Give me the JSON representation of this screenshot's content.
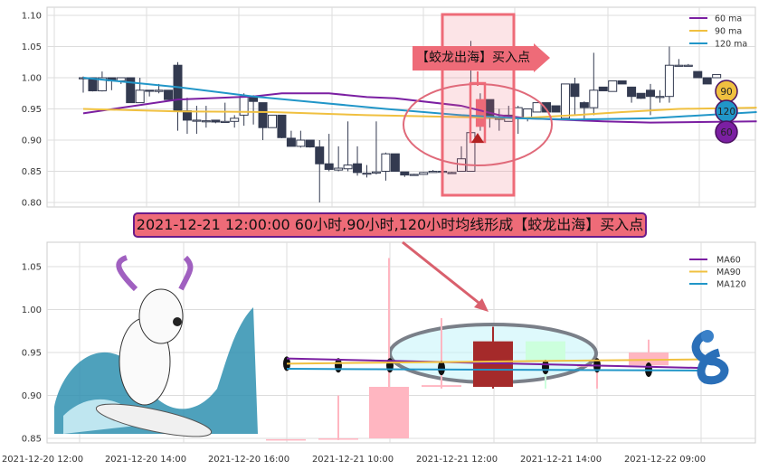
{
  "chart_data": [
    {
      "type": "candlestick",
      "ylim": [
        0.8,
        1.1
      ],
      "yticks": [
        "1.10",
        "1.05",
        "1.00",
        "0.95",
        "0.90",
        "0.85",
        "0.80"
      ],
      "grid": true,
      "legend_placement": "top-right",
      "legend": [
        "60 ma",
        "90 ma",
        "120 ma"
      ],
      "colors": {
        "ma60": "#7b1fa2",
        "ma90": "#f0c040",
        "ma120": "#2196c8",
        "down": "#333a50",
        "up": "#ffffff",
        "highlight": "#ee6b78"
      },
      "candles_ohlc": [
        [
          1.0,
          1.002,
          0.976,
          1.0
        ],
        [
          1.0,
          1.0,
          0.978,
          0.979
        ],
        [
          0.979,
          1.01,
          0.978,
          1.0
        ],
        [
          1.0,
          1.0,
          0.98,
          0.995
        ],
        [
          0.995,
          1.0,
          0.99,
          1.0
        ],
        [
          1.0,
          1.0,
          0.96,
          0.96
        ],
        [
          0.96,
          1.0,
          0.96,
          0.98
        ],
        [
          0.98,
          0.98,
          0.97,
          0.979
        ],
        [
          0.978,
          0.99,
          0.975,
          0.98
        ],
        [
          0.98,
          0.98,
          0.965,
          0.965
        ],
        [
          1.02,
          1.025,
          0.915,
          0.947
        ],
        [
          0.947,
          0.968,
          0.91,
          0.932
        ],
        [
          0.932,
          0.955,
          0.91,
          0.932
        ],
        [
          0.931,
          0.955,
          0.92,
          0.931
        ],
        [
          0.932,
          0.932,
          0.927,
          0.929
        ],
        [
          0.93,
          0.96,
          0.93,
          0.93
        ],
        [
          0.93,
          0.94,
          0.92,
          0.935
        ],
        [
          0.94,
          0.975,
          0.923,
          0.97
        ],
        [
          0.97,
          0.972,
          0.925,
          0.962
        ],
        [
          0.96,
          0.96,
          0.9,
          0.92
        ],
        [
          0.92,
          0.94,
          0.92,
          0.94
        ],
        [
          0.94,
          0.94,
          0.903,
          0.904
        ],
        [
          0.903,
          0.915,
          0.89,
          0.89
        ],
        [
          0.89,
          0.915,
          0.888,
          0.9
        ],
        [
          0.9,
          0.9,
          0.888,
          0.889
        ],
        [
          0.889,
          0.9,
          0.8,
          0.862
        ],
        [
          0.862,
          0.91,
          0.85,
          0.853
        ],
        [
          0.852,
          0.89,
          0.85,
          0.855
        ],
        [
          0.854,
          0.93,
          0.85,
          0.86
        ],
        [
          0.862,
          0.89,
          0.843,
          0.848
        ],
        [
          0.847,
          0.86,
          0.84,
          0.847
        ],
        [
          0.847,
          0.93,
          0.845,
          0.849
        ],
        [
          0.85,
          0.88,
          0.835,
          0.878
        ],
        [
          0.878,
          0.878,
          0.85,
          0.85
        ],
        [
          0.849,
          0.849,
          0.841,
          0.844
        ],
        [
          0.845,
          0.846,
          0.843,
          0.845
        ],
        [
          0.845,
          0.849,
          0.845,
          0.848
        ],
        [
          0.848,
          0.852,
          0.848,
          0.85
        ],
        [
          0.85,
          0.852,
          0.848,
          0.85
        ],
        [
          0.848,
          0.849,
          0.848,
          0.848
        ],
        [
          0.85,
          0.89,
          0.85,
          0.87
        ],
        [
          0.85,
          1.059,
          0.85,
          0.912
        ],
        [
          0.922,
          0.975,
          0.915,
          0.965
        ],
        [
          0.965,
          0.965,
          0.92,
          0.935
        ],
        [
          0.935,
          0.95,
          0.915,
          0.935
        ],
        [
          0.93,
          0.955,
          0.93,
          0.94
        ],
        [
          0.935,
          0.955,
          0.91,
          0.952
        ],
        [
          0.935,
          0.95,
          0.93,
          0.95
        ],
        [
          0.945,
          0.96,
          0.945,
          0.96
        ],
        [
          0.96,
          0.96,
          0.945,
          0.945
        ],
        [
          0.955,
          0.955,
          0.945,
          0.945
        ],
        [
          0.935,
          0.99,
          0.935,
          0.99
        ],
        [
          0.99,
          1.0,
          0.94,
          0.97
        ],
        [
          0.96,
          0.962,
          0.93,
          0.952
        ],
        [
          0.952,
          1.04,
          0.94,
          0.98
        ],
        [
          0.985,
          0.985,
          0.979,
          0.979
        ],
        [
          0.978,
          0.995,
          0.978,
          0.995
        ],
        [
          0.995,
          0.995,
          0.99,
          0.99
        ],
        [
          0.985,
          0.985,
          0.96,
          0.97
        ],
        [
          0.975,
          0.975,
          0.966,
          0.967
        ],
        [
          0.98,
          0.99,
          0.94,
          0.97
        ],
        [
          0.97,
          0.98,
          0.96,
          0.97
        ],
        [
          0.97,
          1.05,
          0.96,
          1.02
        ],
        [
          1.02,
          1.03,
          1.02,
          1.02
        ],
        [
          1.02,
          1.022,
          1.02,
          1.02
        ],
        [
          1.01,
          1.01,
          1.0,
          1.0
        ],
        [
          1.0,
          1.0,
          0.99,
          0.99
        ],
        [
          1.0,
          1.005,
          1.0,
          1.005
        ]
      ],
      "ma60": [
        [
          0,
          0.943
        ],
        [
          10,
          0.965
        ],
        [
          18,
          0.97
        ],
        [
          21,
          0.975
        ],
        [
          26,
          0.975
        ],
        [
          30,
          0.969
        ],
        [
          33,
          0.967
        ],
        [
          40,
          0.955
        ],
        [
          44,
          0.94
        ],
        [
          47,
          0.935
        ],
        [
          55,
          0.93
        ],
        [
          60,
          0.928
        ],
        [
          70,
          0.93
        ]
      ],
      "ma90": [
        [
          0,
          0.95
        ],
        [
          10,
          0.946
        ],
        [
          20,
          0.945
        ],
        [
          30,
          0.94
        ],
        [
          40,
          0.937
        ],
        [
          46,
          0.935
        ],
        [
          52,
          0.94
        ],
        [
          57,
          0.945
        ],
        [
          63,
          0.95
        ],
        [
          70,
          0.952
        ]
      ],
      "ma120": [
        [
          0,
          1.0
        ],
        [
          10,
          0.985
        ],
        [
          18,
          0.97
        ],
        [
          25,
          0.96
        ],
        [
          32,
          0.95
        ],
        [
          40,
          0.94
        ],
        [
          46,
          0.935
        ],
        [
          52,
          0.933
        ],
        [
          60,
          0.935
        ],
        [
          70,
          0.945
        ]
      ],
      "badges": [
        "90",
        "120",
        "60"
      ],
      "annotation": "【蛟龙出海】买入点"
    },
    {
      "type": "candlestick",
      "ylim": [
        0.845,
        1.07
      ],
      "yticks": [
        "1.05",
        "1.00",
        "0.95",
        "0.90",
        "0.85"
      ],
      "xticks": [
        "2021-12-20 12:00",
        "2021-12-20 14:00",
        "2021-12-20 16:00",
        "2021-12-21 10:00",
        "2021-12-21 12:00",
        "2021-12-21 14:00",
        "2021-12-22 09:00"
      ],
      "grid": true,
      "legend_placement": "top-right",
      "legend": [
        "MA60",
        "MA90",
        "MA120"
      ],
      "colors": {
        "ma60": "#7b1fa2",
        "ma90": "#f0c040",
        "ma120": "#2196c8",
        "up": "#ffb6c1",
        "down": "#a52a2a",
        "green": "#ccffdd"
      },
      "candles": [
        {
          "o": 0.849,
          "h": 0.849,
          "l": 0.848,
          "c": 0.849,
          "color": "up"
        },
        {
          "o": 0.849,
          "h": 0.9,
          "l": 0.848,
          "c": 0.85,
          "color": "up"
        },
        {
          "o": 0.85,
          "h": 1.06,
          "l": 0.85,
          "c": 0.91,
          "color": "up"
        },
        {
          "o": 0.91,
          "h": 0.99,
          "l": 0.908,
          "c": 0.912,
          "color": "up"
        },
        {
          "o": 0.963,
          "h": 0.98,
          "l": 0.908,
          "c": 0.91,
          "color": "down"
        },
        {
          "o": 0.94,
          "h": 0.963,
          "l": 0.908,
          "c": 0.963,
          "color": "green"
        },
        {
          "o": 0.935,
          "h": 0.94,
          "l": 0.908,
          "c": 0.935,
          "color": "up"
        },
        {
          "o": 0.935,
          "h": 0.965,
          "l": 0.933,
          "c": 0.95,
          "color": "up"
        }
      ],
      "markers": [
        0.937,
        0.935,
        0.935,
        0.932,
        0.933,
        0.935,
        0.93
      ],
      "ma60": [
        0.943,
        0.932
      ],
      "ma90": [
        0.937,
        0.942
      ],
      "ma120": [
        0.931,
        0.929
      ]
    }
  ],
  "banner": "2021-12-21 12:00:00 60小时,90小时,120小时均线形成【蛟龙出海】买入点",
  "images": [
    "dog-surfing-with-dragon-horns",
    "blue-dragon"
  ]
}
